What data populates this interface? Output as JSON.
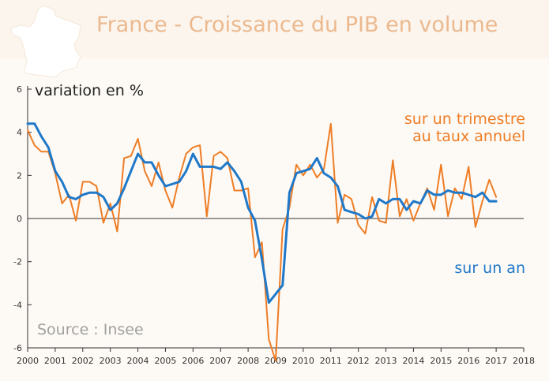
{
  "header": {
    "title": "France - Croissance du PIB en volume"
  },
  "colors": {
    "quarterly": "#ee7d25",
    "annual": "#1f78c8",
    "title": "#ecb98e",
    "source": "#a0a0a0",
    "map": "#ffffff",
    "header_bg": "#fbf5ee"
  },
  "icon": "france-map-icon",
  "chart_data": {
    "type": "line",
    "title": "France - Croissance du PIB en volume",
    "ylabel": "variation en %",
    "xlabel": "",
    "ylim": [
      -6,
      6
    ],
    "xlim": [
      2000,
      2018
    ],
    "yticks": [
      "6",
      "4",
      "2",
      "0",
      "-2",
      "-4",
      "-6"
    ],
    "xticks": [
      "2000",
      "2001",
      "2002",
      "2003",
      "2004",
      "2005",
      "2006",
      "2007",
      "2008",
      "2009",
      "2010",
      "2011",
      "2012",
      "2013",
      "2014",
      "2015",
      "2016",
      "2017",
      "2018"
    ],
    "source": "Source : Insee",
    "series": [
      {
        "name": "sur un trimestre au taux annuel",
        "label_lines": [
          "sur un trimestre",
          "au taux annuel"
        ],
        "color": "#ee7d25",
        "x": [
          2000.0,
          2000.25,
          2000.5,
          2000.75,
          2001.0,
          2001.25,
          2001.5,
          2001.75,
          2002.0,
          2002.25,
          2002.5,
          2002.75,
          2003.0,
          2003.25,
          2003.5,
          2003.75,
          2004.0,
          2004.25,
          2004.5,
          2004.75,
          2005.0,
          2005.25,
          2005.5,
          2005.75,
          2006.0,
          2006.25,
          2006.5,
          2006.75,
          2007.0,
          2007.25,
          2007.5,
          2007.75,
          2008.0,
          2008.25,
          2008.5,
          2008.75,
          2009.0,
          2009.25,
          2009.5,
          2009.75,
          2010.0,
          2010.25,
          2010.5,
          2010.75,
          2011.0,
          2011.25,
          2011.5,
          2011.75,
          2012.0,
          2012.25,
          2012.5,
          2012.75,
          2013.0,
          2013.25,
          2013.5,
          2013.75,
          2014.0,
          2014.25,
          2014.5,
          2014.75,
          2015.0,
          2015.25,
          2015.5,
          2015.75,
          2016.0,
          2016.25,
          2016.5,
          2016.75,
          2017.0
        ],
        "values": [
          4.1,
          3.4,
          3.1,
          3.1,
          2.1,
          0.7,
          1.1,
          -0.1,
          1.7,
          1.7,
          1.5,
          -0.2,
          0.7,
          -0.6,
          2.8,
          2.9,
          3.7,
          2.2,
          1.5,
          2.6,
          1.3,
          0.5,
          1.9,
          3.0,
          3.3,
          3.4,
          0.1,
          2.9,
          3.1,
          2.8,
          1.3,
          1.3,
          1.4,
          -1.8,
          -1.1,
          -5.6,
          -6.6,
          -0.5,
          0.5,
          2.5,
          2.0,
          2.5,
          1.9,
          2.3,
          4.4,
          -0.2,
          1.1,
          0.9,
          -0.3,
          -0.7,
          1.0,
          -0.1,
          -0.2,
          2.7,
          0.1,
          0.9,
          -0.1,
          0.7,
          1.4,
          0.4,
          2.5,
          0.1,
          1.4,
          0.9,
          2.4,
          -0.4,
          0.8,
          1.8,
          1.0
        ]
      },
      {
        "name": "sur un an",
        "label_lines": [
          "sur un an"
        ],
        "color": "#1f78c8",
        "x": [
          2000.0,
          2000.25,
          2000.5,
          2000.75,
          2001.0,
          2001.25,
          2001.5,
          2001.75,
          2002.0,
          2002.25,
          2002.5,
          2002.75,
          2003.0,
          2003.25,
          2003.5,
          2003.75,
          2004.0,
          2004.25,
          2004.5,
          2004.75,
          2005.0,
          2005.25,
          2005.5,
          2005.75,
          2006.0,
          2006.25,
          2006.5,
          2006.75,
          2007.0,
          2007.25,
          2007.5,
          2007.75,
          2008.0,
          2008.25,
          2008.5,
          2008.75,
          2009.0,
          2009.25,
          2009.5,
          2009.75,
          2010.0,
          2010.25,
          2010.5,
          2010.75,
          2011.0,
          2011.25,
          2011.5,
          2011.75,
          2012.0,
          2012.25,
          2012.5,
          2012.75,
          2013.0,
          2013.25,
          2013.5,
          2013.75,
          2014.0,
          2014.25,
          2014.5,
          2014.75,
          2015.0,
          2015.25,
          2015.5,
          2015.75,
          2016.0,
          2016.25,
          2016.5,
          2016.75,
          2017.0
        ],
        "values": [
          4.4,
          4.4,
          3.8,
          3.3,
          2.2,
          1.7,
          1.0,
          0.9,
          1.1,
          1.2,
          1.2,
          1.0,
          0.4,
          0.7,
          1.4,
          2.2,
          3.0,
          2.6,
          2.6,
          2.0,
          1.5,
          1.6,
          1.7,
          2.2,
          3.0,
          2.4,
          2.4,
          2.4,
          2.3,
          2.6,
          2.2,
          1.7,
          0.5,
          -0.1,
          -1.9,
          -3.9,
          -3.5,
          -3.1,
          1.2,
          2.1,
          2.2,
          2.3,
          2.8,
          2.1,
          1.9,
          1.5,
          0.4,
          0.3,
          0.2,
          0.0,
          0.1,
          0.9,
          0.7,
          0.9,
          0.9,
          0.4,
          0.8,
          0.7,
          1.3,
          1.1,
          1.1,
          1.3,
          1.2,
          1.2,
          1.1,
          1.0,
          1.2,
          0.8,
          0.8
        ]
      }
    ]
  }
}
